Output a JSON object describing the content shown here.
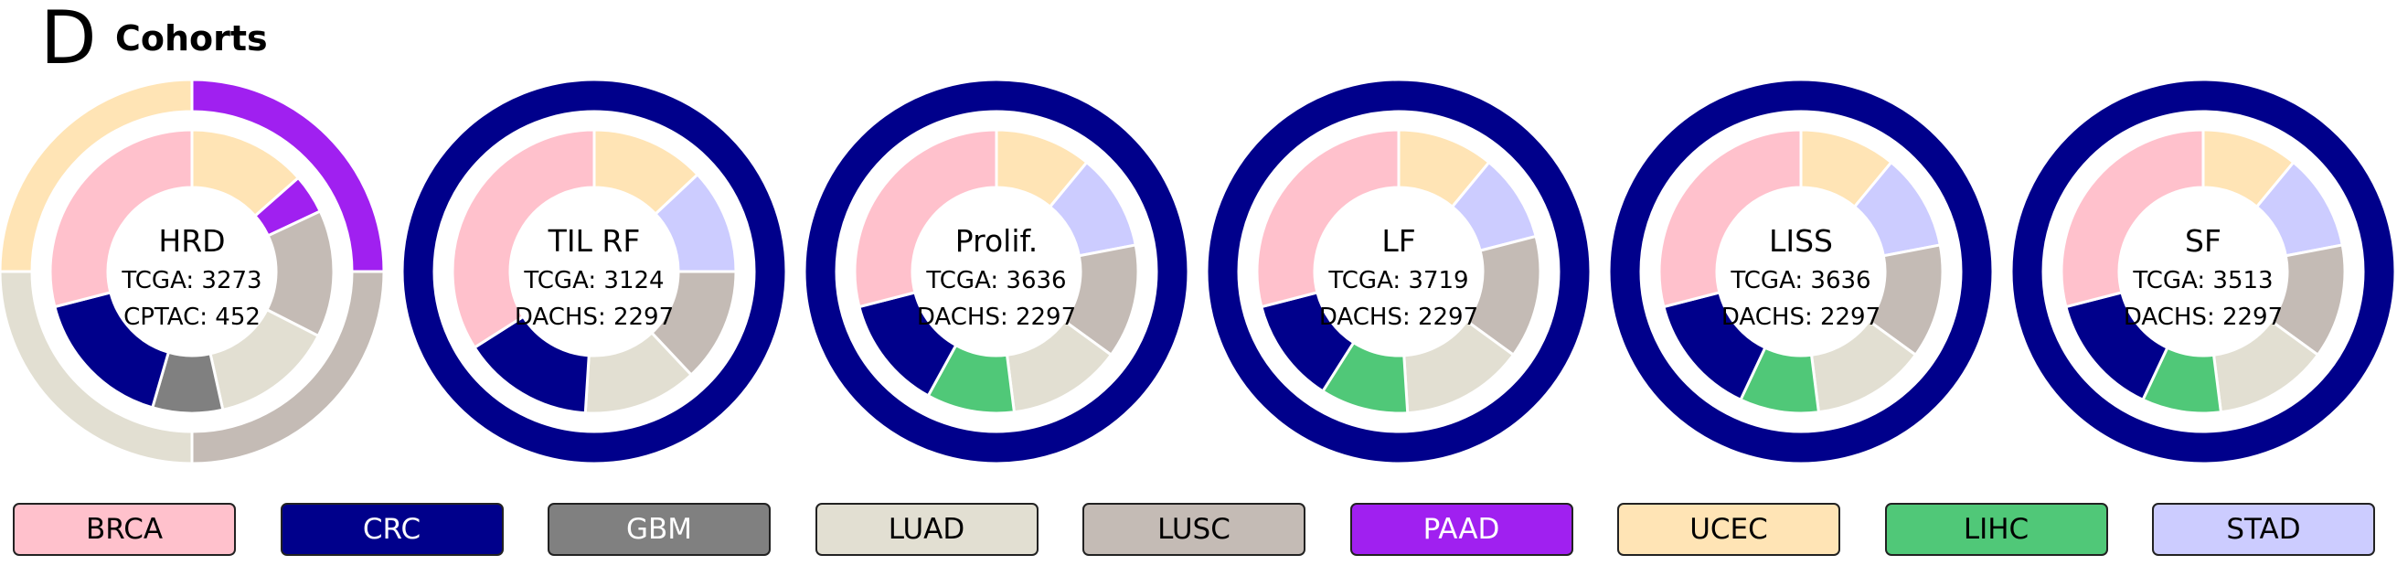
{
  "panel": {
    "letter": "D",
    "title": "Cohorts"
  },
  "colors": {
    "BRCA": "#ffc1cc",
    "CRC": "#00008b",
    "GBM": "#808080",
    "LUAD": "#e2dfd2",
    "LUSC": "#c4bbb5",
    "PAAD": "#a020f0",
    "UCEC": "#ffe4b5",
    "LIHC": "#50c878",
    "STAD": "#ccccff"
  },
  "chart_data": [
    {
      "type": "pie",
      "title": "HRD",
      "counts": [
        "TCGA: 3273",
        "CPTAC: 452"
      ],
      "inner": [
        {
          "name": "UCEC",
          "value": 0.135
        },
        {
          "name": "PAAD",
          "value": 0.045
        },
        {
          "name": "LUSC",
          "value": 0.145
        },
        {
          "name": "LUAD",
          "value": 0.14
        },
        {
          "name": "GBM",
          "value": 0.08
        },
        {
          "name": "CRC",
          "value": 0.165
        },
        {
          "name": "BRCA",
          "value": 0.29
        }
      ],
      "outer": [
        {
          "name": "PAAD",
          "value": 0.25
        },
        {
          "name": "LUSC",
          "value": 0.25
        },
        {
          "name": "LUAD",
          "value": 0.25
        },
        {
          "name": "UCEC",
          "value": 0.25
        }
      ]
    },
    {
      "type": "pie",
      "title": "TIL RF",
      "counts": [
        "TCGA: 3124",
        "DACHS: 2297"
      ],
      "inner": [
        {
          "name": "UCEC",
          "value": 0.13
        },
        {
          "name": "STAD",
          "value": 0.12
        },
        {
          "name": "LUSC",
          "value": 0.13
        },
        {
          "name": "LUAD",
          "value": 0.13
        },
        {
          "name": "CRC",
          "value": 0.15
        },
        {
          "name": "BRCA",
          "value": 0.34
        }
      ],
      "outer": [
        {
          "name": "CRC",
          "value": 1
        }
      ]
    },
    {
      "type": "pie",
      "title": "Prolif.",
      "counts": [
        "TCGA: 3636",
        "DACHS: 2297"
      ],
      "inner": [
        {
          "name": "UCEC",
          "value": 0.11
        },
        {
          "name": "STAD",
          "value": 0.11
        },
        {
          "name": "LUSC",
          "value": 0.13
        },
        {
          "name": "LUAD",
          "value": 0.13
        },
        {
          "name": "LIHC",
          "value": 0.1
        },
        {
          "name": "CRC",
          "value": 0.13
        },
        {
          "name": "BRCA",
          "value": 0.29
        }
      ],
      "outer": [
        {
          "name": "CRC",
          "value": 1
        }
      ]
    },
    {
      "type": "pie",
      "title": "LF",
      "counts": [
        "TCGA: 3719",
        "DACHS: 2297"
      ],
      "inner": [
        {
          "name": "UCEC",
          "value": 0.11
        },
        {
          "name": "STAD",
          "value": 0.1
        },
        {
          "name": "LUSC",
          "value": 0.14
        },
        {
          "name": "LUAD",
          "value": 0.14
        },
        {
          "name": "LIHC",
          "value": 0.1
        },
        {
          "name": "CRC",
          "value": 0.12
        },
        {
          "name": "BRCA",
          "value": 0.29
        }
      ],
      "outer": [
        {
          "name": "CRC",
          "value": 1
        }
      ]
    },
    {
      "type": "pie",
      "title": "LISS",
      "counts": [
        "TCGA: 3636",
        "DACHS: 2297"
      ],
      "inner": [
        {
          "name": "UCEC",
          "value": 0.11
        },
        {
          "name": "STAD",
          "value": 0.11
        },
        {
          "name": "LUSC",
          "value": 0.13
        },
        {
          "name": "LUAD",
          "value": 0.13
        },
        {
          "name": "LIHC",
          "value": 0.09
        },
        {
          "name": "CRC",
          "value": 0.14
        },
        {
          "name": "BRCA",
          "value": 0.29
        }
      ],
      "outer": [
        {
          "name": "CRC",
          "value": 1
        }
      ]
    },
    {
      "type": "pie",
      "title": "SF",
      "counts": [
        "TCGA: 3513",
        "DACHS: 2297"
      ],
      "inner": [
        {
          "name": "UCEC",
          "value": 0.11
        },
        {
          "name": "STAD",
          "value": 0.11
        },
        {
          "name": "LUSC",
          "value": 0.13
        },
        {
          "name": "LUAD",
          "value": 0.13
        },
        {
          "name": "LIHC",
          "value": 0.09
        },
        {
          "name": "CRC",
          "value": 0.14
        },
        {
          "name": "BRCA",
          "value": 0.29
        }
      ],
      "outer": [
        {
          "name": "CRC",
          "value": 1
        }
      ]
    }
  ],
  "legend": [
    {
      "label": "BRCA",
      "text_color": "#000000"
    },
    {
      "label": "CRC",
      "text_color": "#ffffff"
    },
    {
      "label": "GBM",
      "text_color": "#ffffff"
    },
    {
      "label": "LUAD",
      "text_color": "#000000"
    },
    {
      "label": "LUSC",
      "text_color": "#000000"
    },
    {
      "label": "PAAD",
      "text_color": "#ffffff"
    },
    {
      "label": "UCEC",
      "text_color": "#000000"
    },
    {
      "label": "LIHC",
      "text_color": "#000000"
    },
    {
      "label": "STAD",
      "text_color": "#000000"
    }
  ]
}
